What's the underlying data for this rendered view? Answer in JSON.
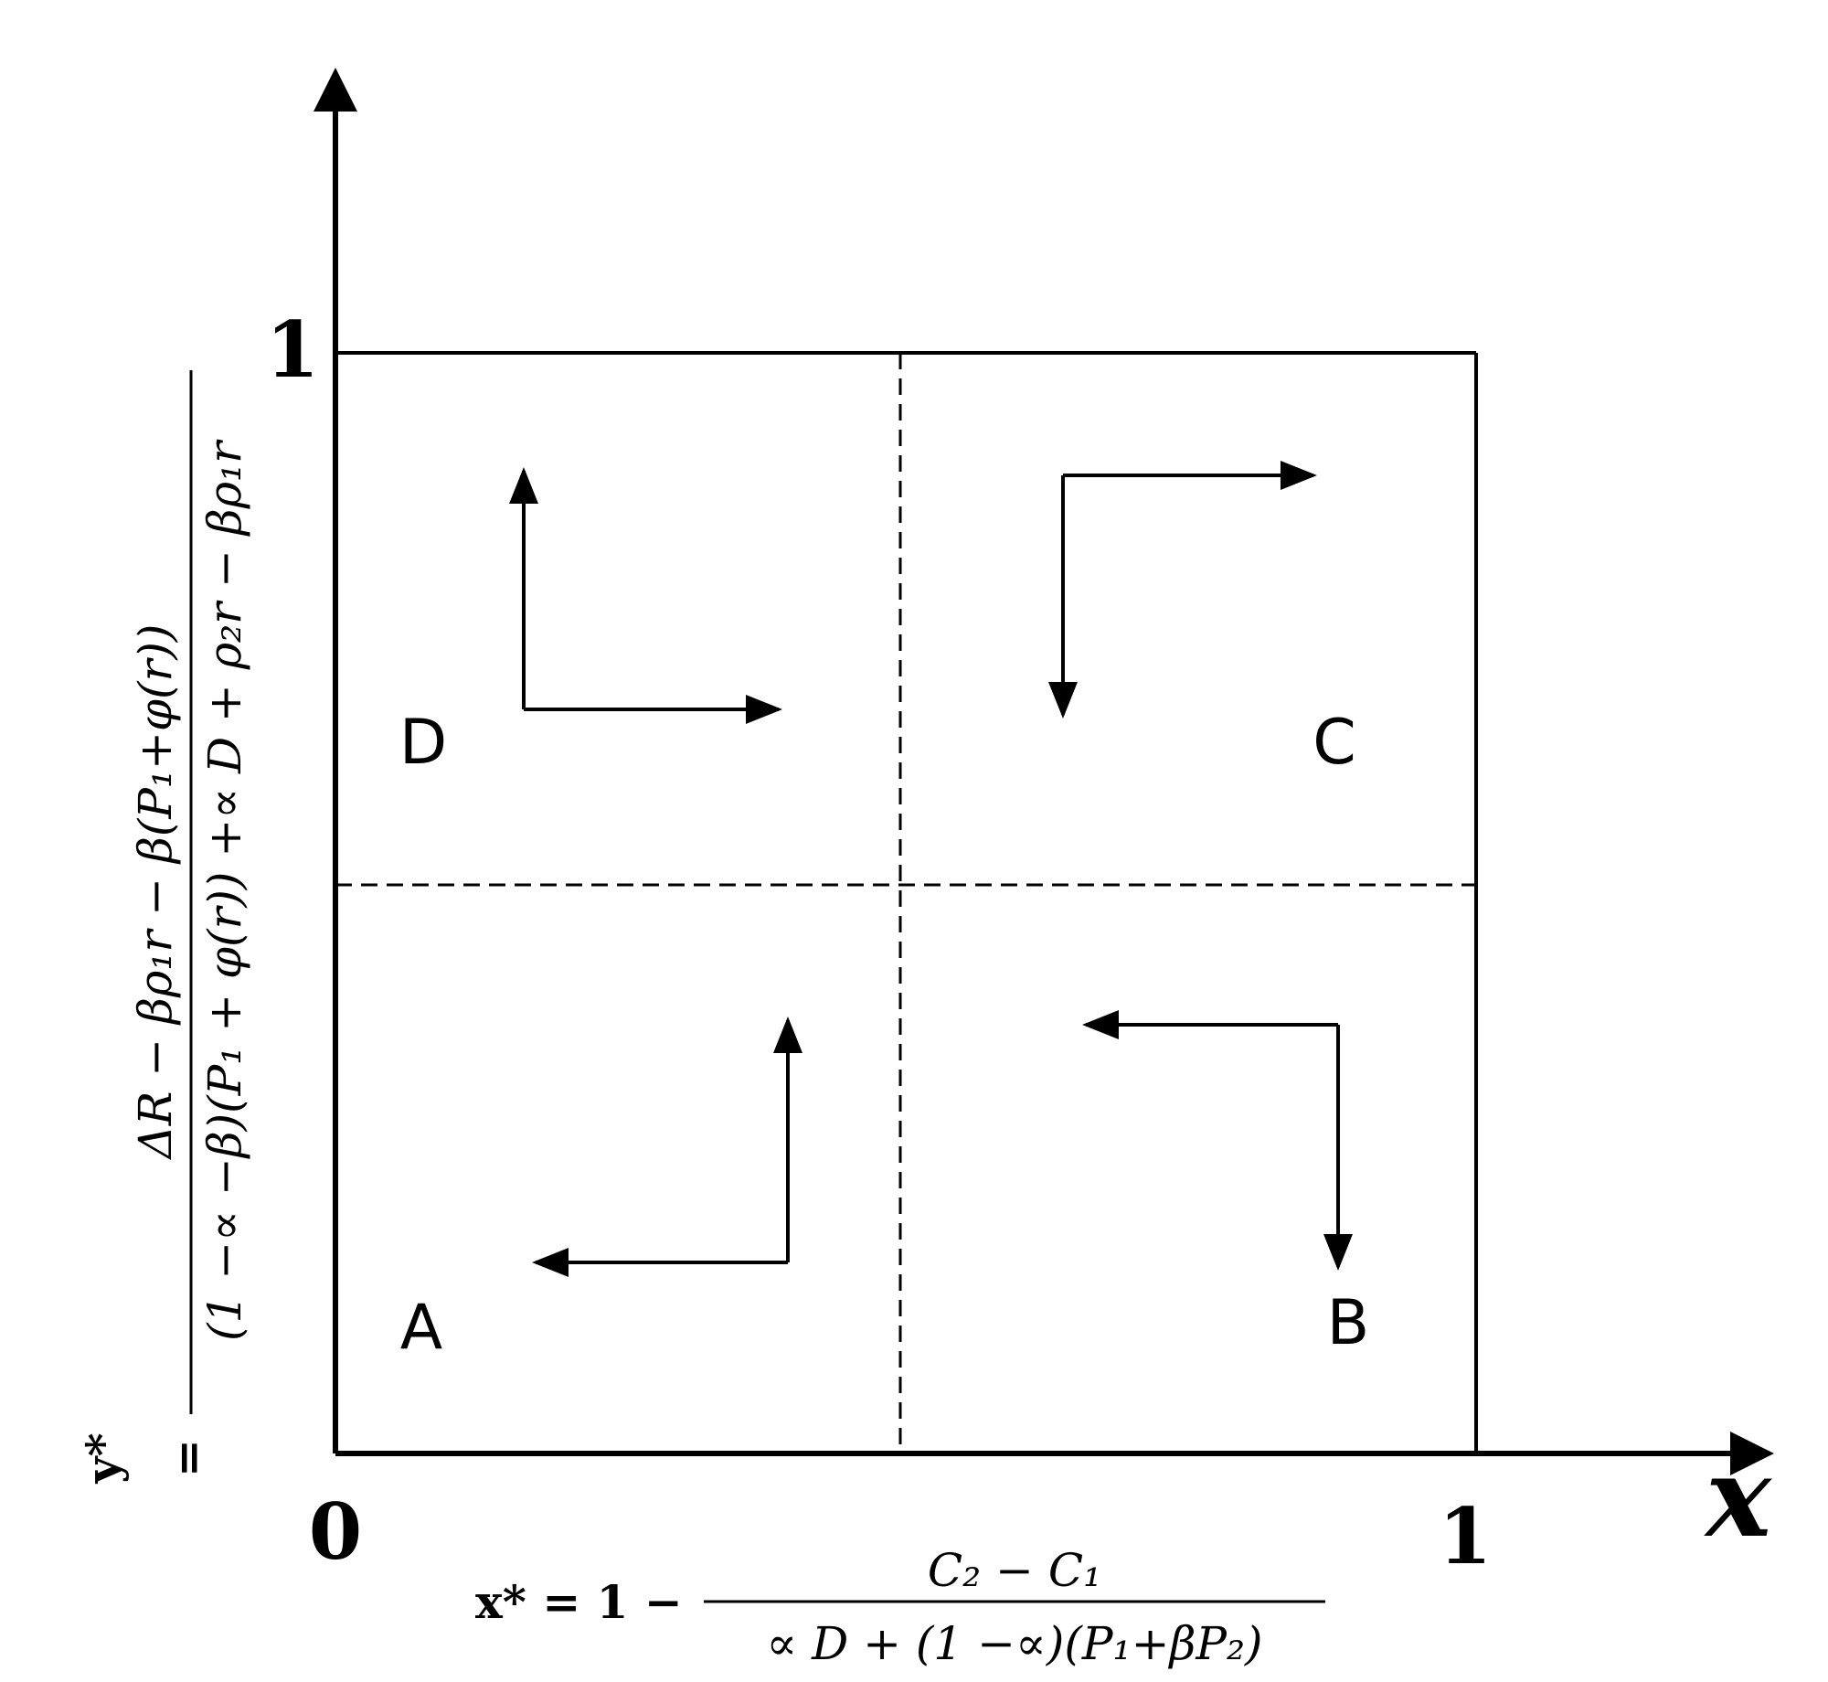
{
  "axes": {
    "x_label": "x",
    "origin_label": "0",
    "x_tick_one": "1",
    "y_tick_one": "1"
  },
  "regions": {
    "a": "A",
    "b": "B",
    "c": "C",
    "d": "D"
  },
  "x_formula": {
    "lhs": "x* = 1 −",
    "numerator": "C₂ − C₁",
    "denominator": "∝ D + (1 −∝)(P₁+βP₂)"
  },
  "y_formula": {
    "lhs": "y*",
    "equals": "=",
    "numerator": "ΔR − βρ₁r − β(P₁+φ(r))",
    "denominator": "(1 −∝ −β)(P₁ + φ(r)) +∝ D + ρ₂r − βρ₁r"
  }
}
